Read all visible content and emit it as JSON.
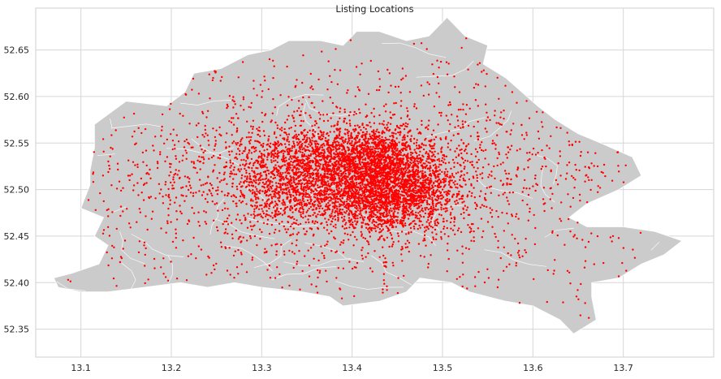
{
  "chart_data": {
    "type": "scatter",
    "title": "Listing Locations",
    "xlabel": "",
    "ylabel": "",
    "xlim": [
      13.05,
      13.8
    ],
    "ylim": [
      52.32,
      52.695
    ],
    "xticks": [
      13.1,
      13.2,
      13.3,
      13.4,
      13.5,
      13.6,
      13.7
    ],
    "yticks": [
      52.35,
      52.4,
      52.45,
      52.5,
      52.55,
      52.6,
      52.65
    ],
    "xtick_labels": [
      "13.1",
      "13.2",
      "13.3",
      "13.4",
      "13.5",
      "13.6",
      "13.7"
    ],
    "ytick_labels": [
      "52.35",
      "52.40",
      "52.45",
      "52.50",
      "52.55",
      "52.60",
      "52.65"
    ],
    "grid": true,
    "background_layer": {
      "kind": "district-boundaries",
      "fill": "#cbcbcb",
      "edge": "#ffffff",
      "outline": [
        [
          13.09,
          52.41
        ],
        [
          13.12,
          52.42
        ],
        [
          13.13,
          52.44
        ],
        [
          13.115,
          52.45
        ],
        [
          13.125,
          52.47
        ],
        [
          13.1,
          52.48
        ],
        [
          13.11,
          52.505
        ],
        [
          13.11,
          52.52
        ],
        [
          13.115,
          52.545
        ],
        [
          13.115,
          52.57
        ],
        [
          13.15,
          52.595
        ],
        [
          13.195,
          52.59
        ],
        [
          13.215,
          52.605
        ],
        [
          13.225,
          52.625
        ],
        [
          13.255,
          52.63
        ],
        [
          13.285,
          52.645
        ],
        [
          13.31,
          52.65
        ],
        [
          13.33,
          52.66
        ],
        [
          13.365,
          52.66
        ],
        [
          13.39,
          52.655
        ],
        [
          13.405,
          52.67
        ],
        [
          13.43,
          52.67
        ],
        [
          13.46,
          52.66
        ],
        [
          13.485,
          52.665
        ],
        [
          13.505,
          52.685
        ],
        [
          13.525,
          52.665
        ],
        [
          13.55,
          52.655
        ],
        [
          13.545,
          52.635
        ],
        [
          13.57,
          52.62
        ],
        [
          13.605,
          52.59
        ],
        [
          13.625,
          52.575
        ],
        [
          13.65,
          52.56
        ],
        [
          13.675,
          52.55
        ],
        [
          13.71,
          52.535
        ],
        [
          13.72,
          52.515
        ],
        [
          13.695,
          52.5
        ],
        [
          13.66,
          52.485
        ],
        [
          13.64,
          52.47
        ],
        [
          13.66,
          52.46
        ],
        [
          13.7,
          52.46
        ],
        [
          13.735,
          52.455
        ],
        [
          13.765,
          52.445
        ],
        [
          13.745,
          52.43
        ],
        [
          13.72,
          52.42
        ],
        [
          13.695,
          52.405
        ],
        [
          13.665,
          52.4
        ],
        [
          13.665,
          52.385
        ],
        [
          13.67,
          52.36
        ],
        [
          13.645,
          52.345
        ],
        [
          13.63,
          52.36
        ],
        [
          13.6,
          52.375
        ],
        [
          13.57,
          52.38
        ],
        [
          13.53,
          52.39
        ],
        [
          13.51,
          52.4
        ],
        [
          13.475,
          52.405
        ],
        [
          13.46,
          52.39
        ],
        [
          13.43,
          52.38
        ],
        [
          13.39,
          52.375
        ],
        [
          13.375,
          52.385
        ],
        [
          13.345,
          52.39
        ],
        [
          13.3,
          52.395
        ],
        [
          13.27,
          52.4
        ],
        [
          13.24,
          52.395
        ],
        [
          13.21,
          52.4
        ],
        [
          13.17,
          52.395
        ],
        [
          13.13,
          52.39
        ],
        [
          13.1,
          52.39
        ],
        [
          13.075,
          52.395
        ],
        [
          13.07,
          52.405
        ]
      ]
    },
    "series": [
      {
        "name": "listings",
        "color": "#ff0000",
        "marker_size": 1.2,
        "clusters": [
          {
            "center": [
              13.415,
              52.535
            ],
            "spread": [
              0.035,
              0.018
            ],
            "count": 1400
          },
          {
            "center": [
              13.435,
              52.49
            ],
            "spread": [
              0.035,
              0.018
            ],
            "count": 1100
          },
          {
            "center": [
              13.35,
              52.5
            ],
            "spread": [
              0.045,
              0.02
            ],
            "count": 1000
          },
          {
            "center": [
              13.465,
              52.505
            ],
            "spread": [
              0.03,
              0.018
            ],
            "count": 700
          },
          {
            "center": [
              13.34,
              52.535
            ],
            "spread": [
              0.04,
              0.018
            ],
            "count": 450
          },
          {
            "center": [
              13.4,
              52.52
            ],
            "spread": [
              0.13,
              0.045
            ],
            "count": 1300
          },
          {
            "center": [
              13.4,
              52.5
            ],
            "spread": [
              0.28,
              0.09
            ],
            "count": 900
          }
        ]
      }
    ]
  }
}
